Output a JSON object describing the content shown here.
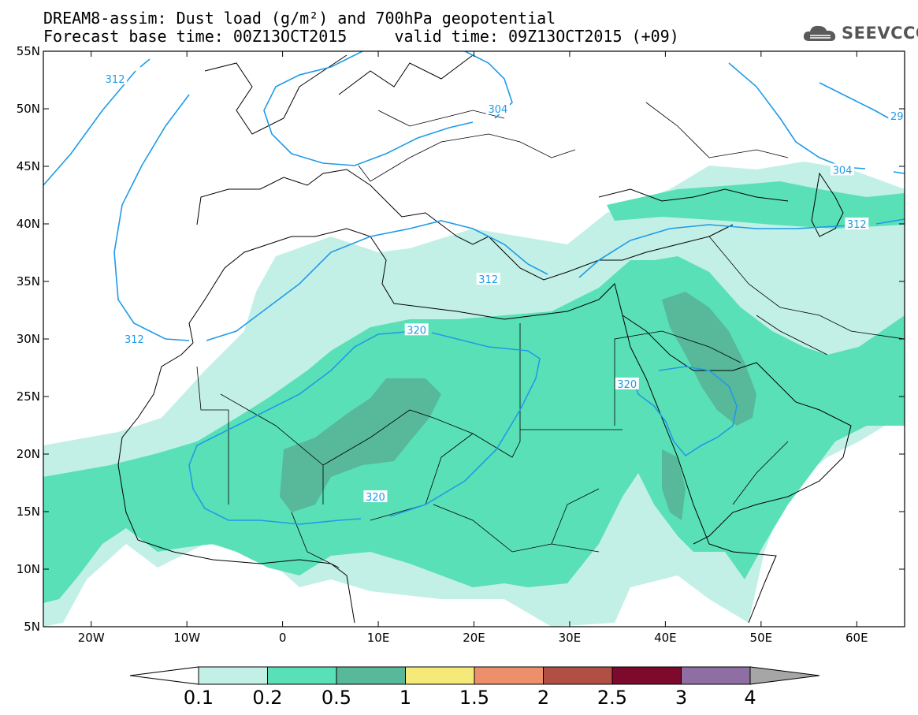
{
  "header": {
    "title_line1": "DREAM8-assim: Dust load (g/m²) and 700hPa geopotential",
    "title_line2": "Forecast base time: 00Z13OCT2015     valid time: 09Z13OCT2015 (+09)"
  },
  "logo": {
    "text": "SEEVCCC",
    "icon": "cloud-logo-icon"
  },
  "map": {
    "lon_range": [
      -25,
      65
    ],
    "lat_range": [
      5,
      55
    ],
    "lat_ticks": [
      {
        "lat": 55,
        "label": "55N"
      },
      {
        "lat": 50,
        "label": "50N"
      },
      {
        "lat": 45,
        "label": "45N"
      },
      {
        "lat": 40,
        "label": "40N"
      },
      {
        "lat": 35,
        "label": "35N"
      },
      {
        "lat": 30,
        "label": "30N"
      },
      {
        "lat": 25,
        "label": "25N"
      },
      {
        "lat": 20,
        "label": "20N"
      },
      {
        "lat": 15,
        "label": "15N"
      },
      {
        "lat": 10,
        "label": "10N"
      },
      {
        "lat": 5,
        "label": "5N"
      }
    ],
    "lon_ticks": [
      {
        "lon": -20,
        "label": "20W"
      },
      {
        "lon": -10,
        "label": "10W"
      },
      {
        "lon": 0,
        "label": "0"
      },
      {
        "lon": 10,
        "label": "10E"
      },
      {
        "lon": 20,
        "label": "20E"
      },
      {
        "lon": 30,
        "label": "30E"
      },
      {
        "lon": 40,
        "label": "40E"
      },
      {
        "lon": 50,
        "label": "50E"
      },
      {
        "lon": 60,
        "label": "60E"
      }
    ],
    "contour_labels": [
      {
        "text": "312",
        "lon": -17.5,
        "lat": 52.6
      },
      {
        "text": "304",
        "lon": 22.5,
        "lat": 50.0
      },
      {
        "text": "29",
        "lon": 64.2,
        "lat": 49.4
      },
      {
        "text": "304",
        "lon": 58.5,
        "lat": 44.7
      },
      {
        "text": "312",
        "lon": 60.0,
        "lat": 40.0
      },
      {
        "text": "312",
        "lon": 21.5,
        "lat": 35.2
      },
      {
        "text": "312",
        "lon": -15.5,
        "lat": 30.0
      },
      {
        "text": "320",
        "lon": 14.0,
        "lat": 30.8
      },
      {
        "text": "320",
        "lon": 36.0,
        "lat": 26.1
      },
      {
        "text": "320",
        "lon": 9.7,
        "lat": 16.3
      }
    ]
  },
  "colorbar": {
    "colors": [
      "#c2f0e6",
      "#59e0b6",
      "#57b89a",
      "#f5e97a",
      "#ec8f6a",
      "#b24f45",
      "#7d0a2c",
      "#8e6ea3"
    ],
    "under_color": "#ffffff",
    "over_color": "#a6a6a6",
    "labels": [
      "0.1",
      "0.2",
      "0.5",
      "1",
      "1.5",
      "2",
      "2.5",
      "3",
      "4"
    ]
  },
  "styles": {
    "contour_color": "#1f9be8",
    "coast_color": "#000000",
    "dust_light": "#c2f0e6",
    "dust_mid": "#59e0b6",
    "dust_dark": "#57b89a"
  }
}
